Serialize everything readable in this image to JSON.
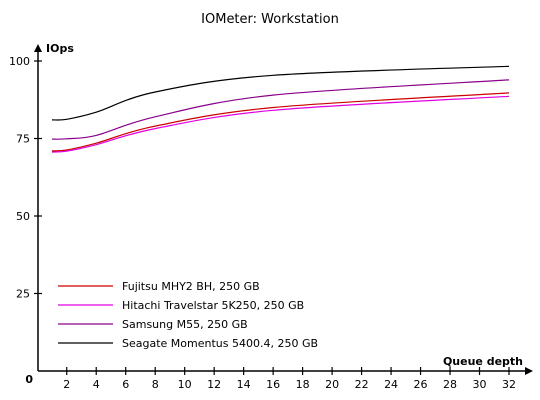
{
  "chart_data": {
    "type": "line",
    "title": "IOMeter: Workstation",
    "ylabel": "IOps",
    "xlabel": "Queue depth",
    "origin_label": "0",
    "ylim": [
      0,
      100
    ],
    "xlim": [
      0,
      32
    ],
    "y_ticks": [
      "25",
      "50",
      "75",
      "100"
    ],
    "x_ticks": [
      "2",
      "4",
      "6",
      "8",
      "10",
      "12",
      "14",
      "16",
      "18",
      "20",
      "22",
      "24",
      "26",
      "28",
      "30",
      "32"
    ],
    "grid": false,
    "legend_position": "bottom-left",
    "x": [
      1,
      2,
      4,
      8,
      16,
      32
    ],
    "series": [
      {
        "name": "Fujitsu MHY2 BH, 250 GB",
        "color": "#cc0000",
        "values": [
          71.0,
          71.3,
          73.5,
          79.0,
          85.0,
          89.7
        ]
      },
      {
        "name": "Hitachi Travelstar 5K250, 250 GB",
        "color": "#e000e0",
        "values": [
          70.6,
          70.9,
          73.0,
          78.2,
          84.1,
          88.6
        ]
      },
      {
        "name": "Samsung M55, 250 GB",
        "color": "#8a008a",
        "values": [
          74.8,
          74.9,
          76.0,
          82.0,
          89.0,
          93.9
        ]
      },
      {
        "name": "Seagate Momentus 5400.4, 250 GB",
        "color": "#000000",
        "values": [
          81.0,
          81.2,
          83.5,
          90.0,
          95.4,
          98.3
        ]
      }
    ]
  }
}
